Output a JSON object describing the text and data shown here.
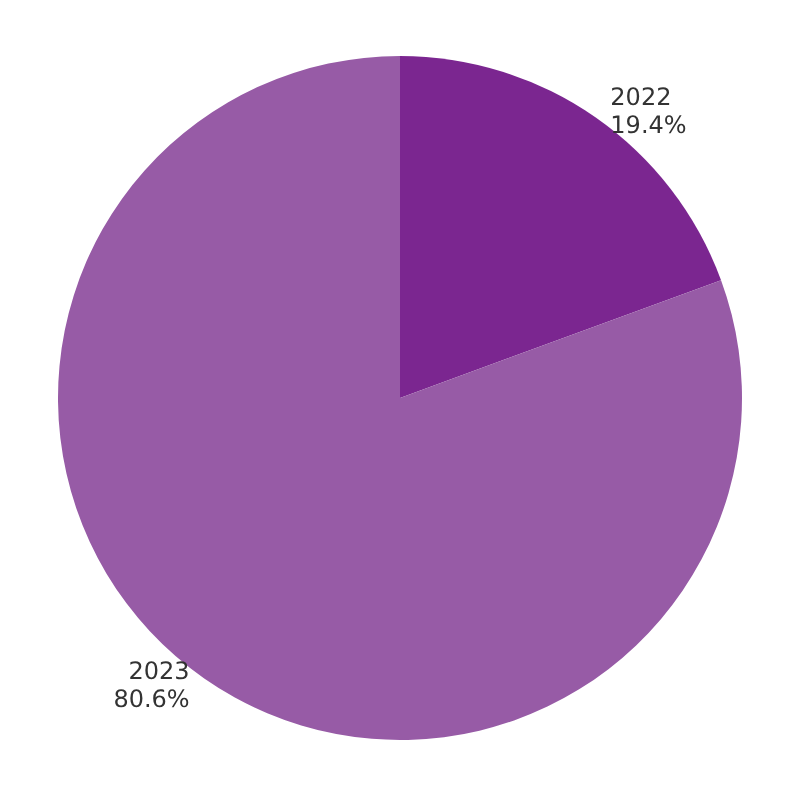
{
  "chart_data": {
    "type": "pie",
    "categories": [
      "2022",
      "2023"
    ],
    "values": [
      19.4,
      80.6
    ],
    "colors": [
      "#7b2690",
      "#975ba6"
    ],
    "value_labels": [
      "19.4%",
      "80.6%"
    ],
    "legend": false
  }
}
